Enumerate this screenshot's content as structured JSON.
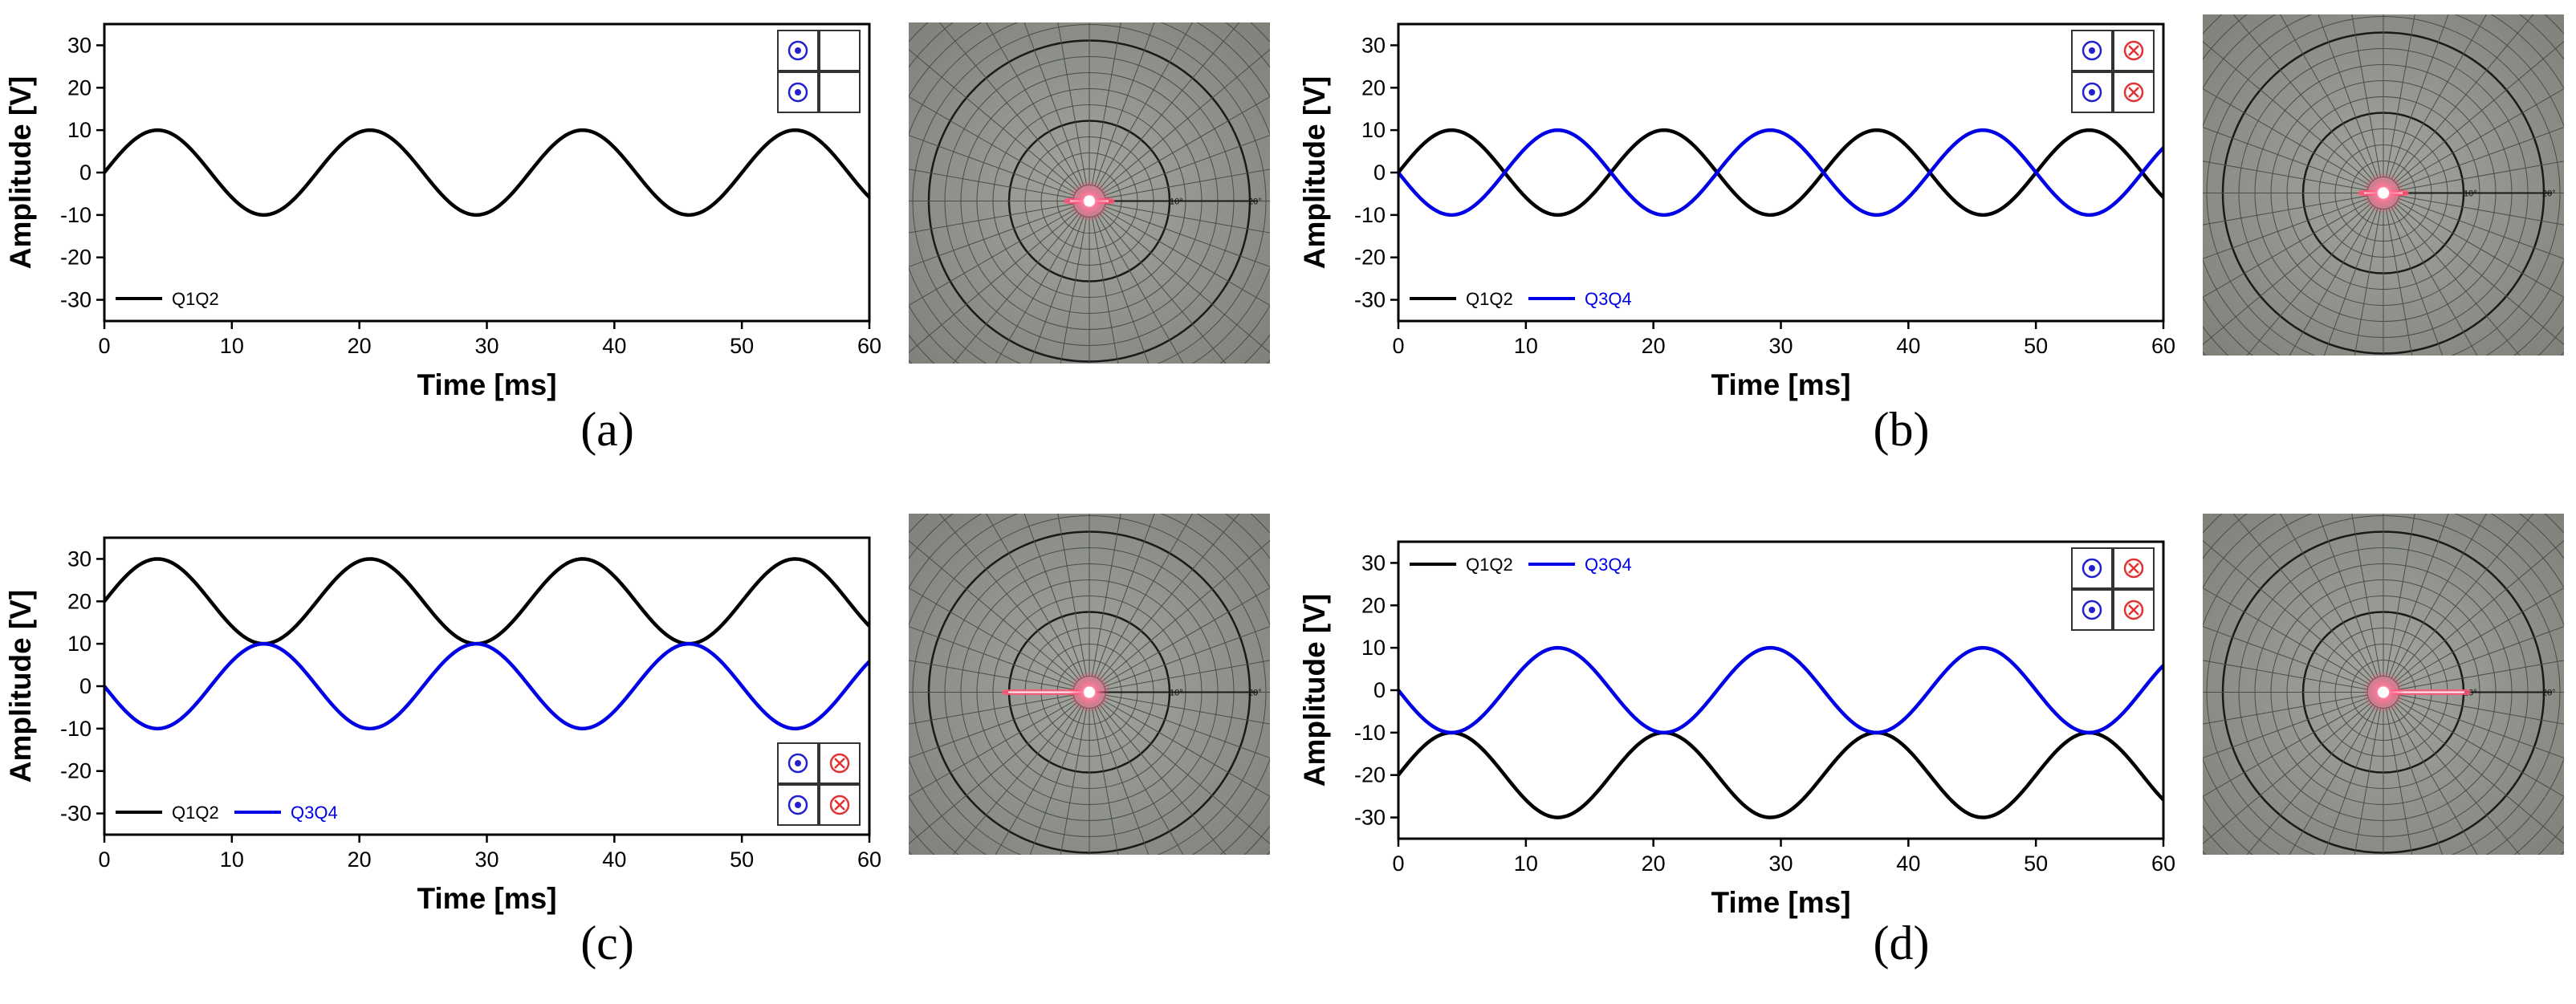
{
  "figure": {
    "colors": {
      "q1q2": "#000000",
      "q3q4": "#0000e6",
      "cell_dot": "#2222cc",
      "cell_cross": "#e03333",
      "laser": "#ff5577"
    },
    "plot_sample_ms": 0.25
  },
  "chart_data": [
    {
      "panel": "a",
      "label": "(a)",
      "type": "line",
      "xlabel": "Time [ms]",
      "ylabel": "Amplitude [V]",
      "xlim": [
        0,
        60
      ],
      "ylim": [
        -35,
        35
      ],
      "xticks": [
        0,
        10,
        20,
        30,
        40,
        50,
        60
      ],
      "yticks": [
        -30,
        -20,
        -10,
        0,
        10,
        20,
        30
      ],
      "period_ms": 16.67,
      "series": [
        {
          "name": "Q1Q2",
          "color": "#000000",
          "amplitude_v": 10,
          "offset_v": 0,
          "phase_sign": 1
        }
      ],
      "legend": {
        "position": "bottom-left",
        "entries": [
          "Q1Q2"
        ]
      },
      "coil_grid": {
        "position": "top-right",
        "cells": [
          [
            "dot",
            "empty"
          ],
          [
            "dot",
            "empty"
          ]
        ]
      },
      "photo": {
        "spot": "center",
        "streak_dir": "both",
        "scale_labels": [
          "10°",
          "20°"
        ]
      }
    },
    {
      "panel": "b",
      "label": "(b)",
      "type": "line",
      "xlabel": "Time [ms]",
      "ylabel": "Amplitude [V]",
      "xlim": [
        0,
        60
      ],
      "ylim": [
        -35,
        35
      ],
      "xticks": [
        0,
        10,
        20,
        30,
        40,
        50,
        60
      ],
      "yticks": [
        -30,
        -20,
        -10,
        0,
        10,
        20,
        30
      ],
      "period_ms": 16.67,
      "series": [
        {
          "name": "Q1Q2",
          "color": "#000000",
          "amplitude_v": 10,
          "offset_v": 0,
          "phase_sign": 1
        },
        {
          "name": "Q3Q4",
          "color": "#0000e6",
          "amplitude_v": 10,
          "offset_v": 0,
          "phase_sign": -1
        }
      ],
      "legend": {
        "position": "bottom-left",
        "entries": [
          "Q1Q2",
          "Q3Q4"
        ]
      },
      "coil_grid": {
        "position": "top-right",
        "cells": [
          [
            "dot",
            "cross"
          ],
          [
            "dot",
            "cross"
          ]
        ]
      },
      "photo": {
        "spot": "center",
        "streak_dir": "both",
        "scale_labels": [
          "10°",
          "20°"
        ]
      }
    },
    {
      "panel": "c",
      "label": "(c)",
      "type": "line",
      "xlabel": "Time [ms]",
      "ylabel": "Amplitude [V]",
      "xlim": [
        0,
        60
      ],
      "ylim": [
        -35,
        35
      ],
      "xticks": [
        0,
        10,
        20,
        30,
        40,
        50,
        60
      ],
      "yticks": [
        -30,
        -20,
        -10,
        0,
        10,
        20,
        30
      ],
      "period_ms": 16.67,
      "series": [
        {
          "name": "Q1Q2",
          "color": "#000000",
          "amplitude_v": 10,
          "offset_v": 20,
          "phase_sign": 1
        },
        {
          "name": "Q3Q4",
          "color": "#0000e6",
          "amplitude_v": 10,
          "offset_v": 0,
          "phase_sign": -1
        }
      ],
      "legend": {
        "position": "bottom-left",
        "entries": [
          "Q1Q2",
          "Q3Q4"
        ]
      },
      "coil_grid": {
        "position": "bottom-right",
        "cells": [
          [
            "dot",
            "cross"
          ],
          [
            "dot",
            "cross"
          ]
        ]
      },
      "photo": {
        "spot": "center",
        "streak_dir": "left",
        "scale_labels": [
          "10°",
          "20°"
        ]
      }
    },
    {
      "panel": "d",
      "label": "(d)",
      "type": "line",
      "xlabel": "Time [ms]",
      "ylabel": "Amplitude [V]",
      "xlim": [
        0,
        60
      ],
      "ylim": [
        -35,
        35
      ],
      "xticks": [
        0,
        10,
        20,
        30,
        40,
        50,
        60
      ],
      "yticks": [
        -30,
        -20,
        -10,
        0,
        10,
        20,
        30
      ],
      "period_ms": 16.67,
      "series": [
        {
          "name": "Q1Q2",
          "color": "#000000",
          "amplitude_v": 10,
          "offset_v": -20,
          "phase_sign": 1
        },
        {
          "name": "Q3Q4",
          "color": "#0000e6",
          "amplitude_v": 10,
          "offset_v": 0,
          "phase_sign": -1
        }
      ],
      "legend": {
        "position": "top-left",
        "entries": [
          "Q1Q2",
          "Q3Q4"
        ]
      },
      "coil_grid": {
        "position": "top-right",
        "cells": [
          [
            "dot",
            "cross"
          ],
          [
            "dot",
            "cross"
          ]
        ]
      },
      "photo": {
        "spot": "center",
        "streak_dir": "right",
        "scale_labels": [
          "10°",
          "20°"
        ]
      }
    }
  ]
}
